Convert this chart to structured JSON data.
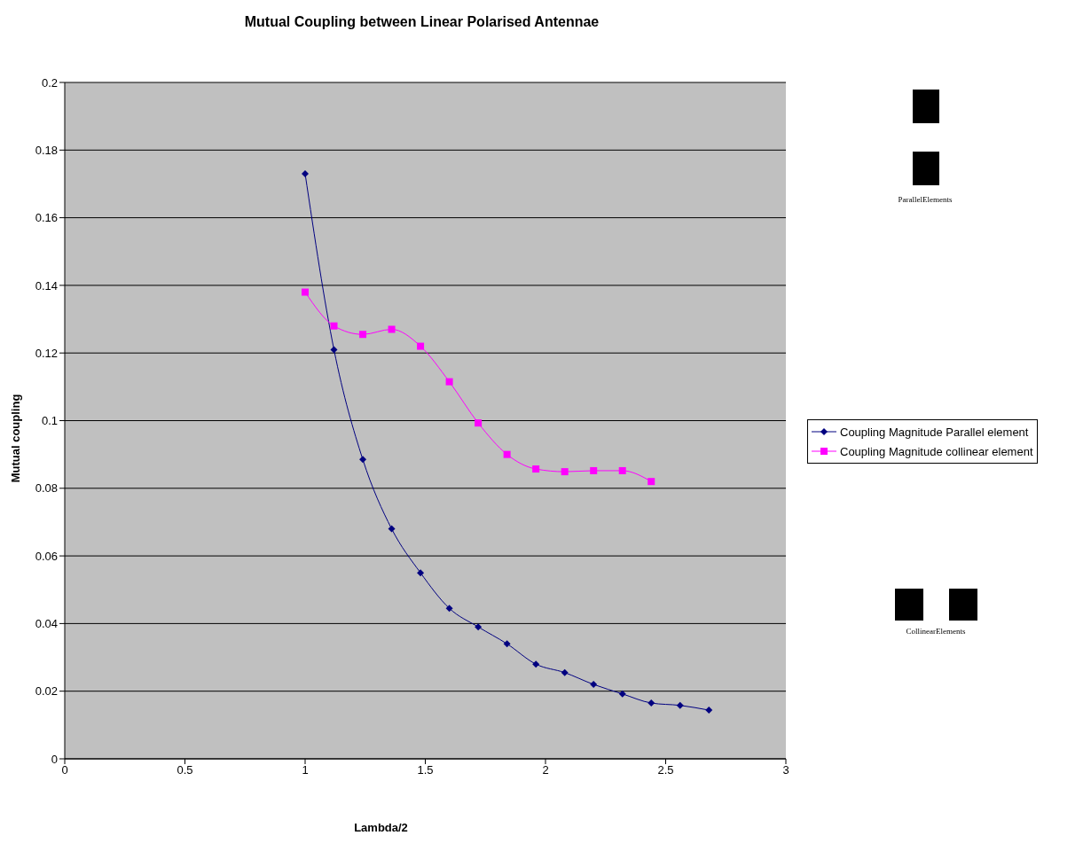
{
  "chart_data": {
    "type": "line",
    "title": "Mutual Coupling between Linear Polarised Antennae",
    "xlabel": "Lambda/2",
    "ylabel": "Mutual coupling",
    "x": [
      1,
      1.12,
      1.24,
      1.36,
      1.48,
      1.6,
      1.72,
      1.84,
      1.96,
      2.08,
      2.2,
      2.32,
      2.44,
      2.56,
      2.68
    ],
    "series": [
      {
        "name": "Coupling Magnitude Parallel element",
        "color": "#000080",
        "marker": "diamond",
        "values": [
          0.173,
          0.121,
          0.0885,
          0.068,
          0.055,
          0.0445,
          0.039,
          0.034,
          0.028,
          0.0255,
          0.022,
          0.0192,
          0.0165,
          0.0158,
          0.0144
        ]
      },
      {
        "name": "Coupling Magnitude collinear element",
        "color": "#ff00ff",
        "marker": "square",
        "values": [
          0.138,
          0.128,
          0.1255,
          0.127,
          0.122,
          0.1115,
          0.0993,
          0.09,
          0.0857,
          0.0849,
          0.0852,
          0.0852,
          0.082,
          null,
          null
        ]
      }
    ],
    "xlim": [
      0,
      3
    ],
    "xticks": [
      0,
      0.5,
      1,
      1.5,
      2,
      2.5,
      3
    ],
    "ylim": [
      0,
      0.2
    ],
    "yticks": [
      0,
      0.02,
      0.04,
      0.06,
      0.08,
      0.1,
      0.12,
      0.14,
      0.16,
      0.18,
      0.2
    ],
    "grid": "y",
    "legend": "right",
    "annotations": [
      "ParallelElements",
      "CollinearElements"
    ]
  }
}
